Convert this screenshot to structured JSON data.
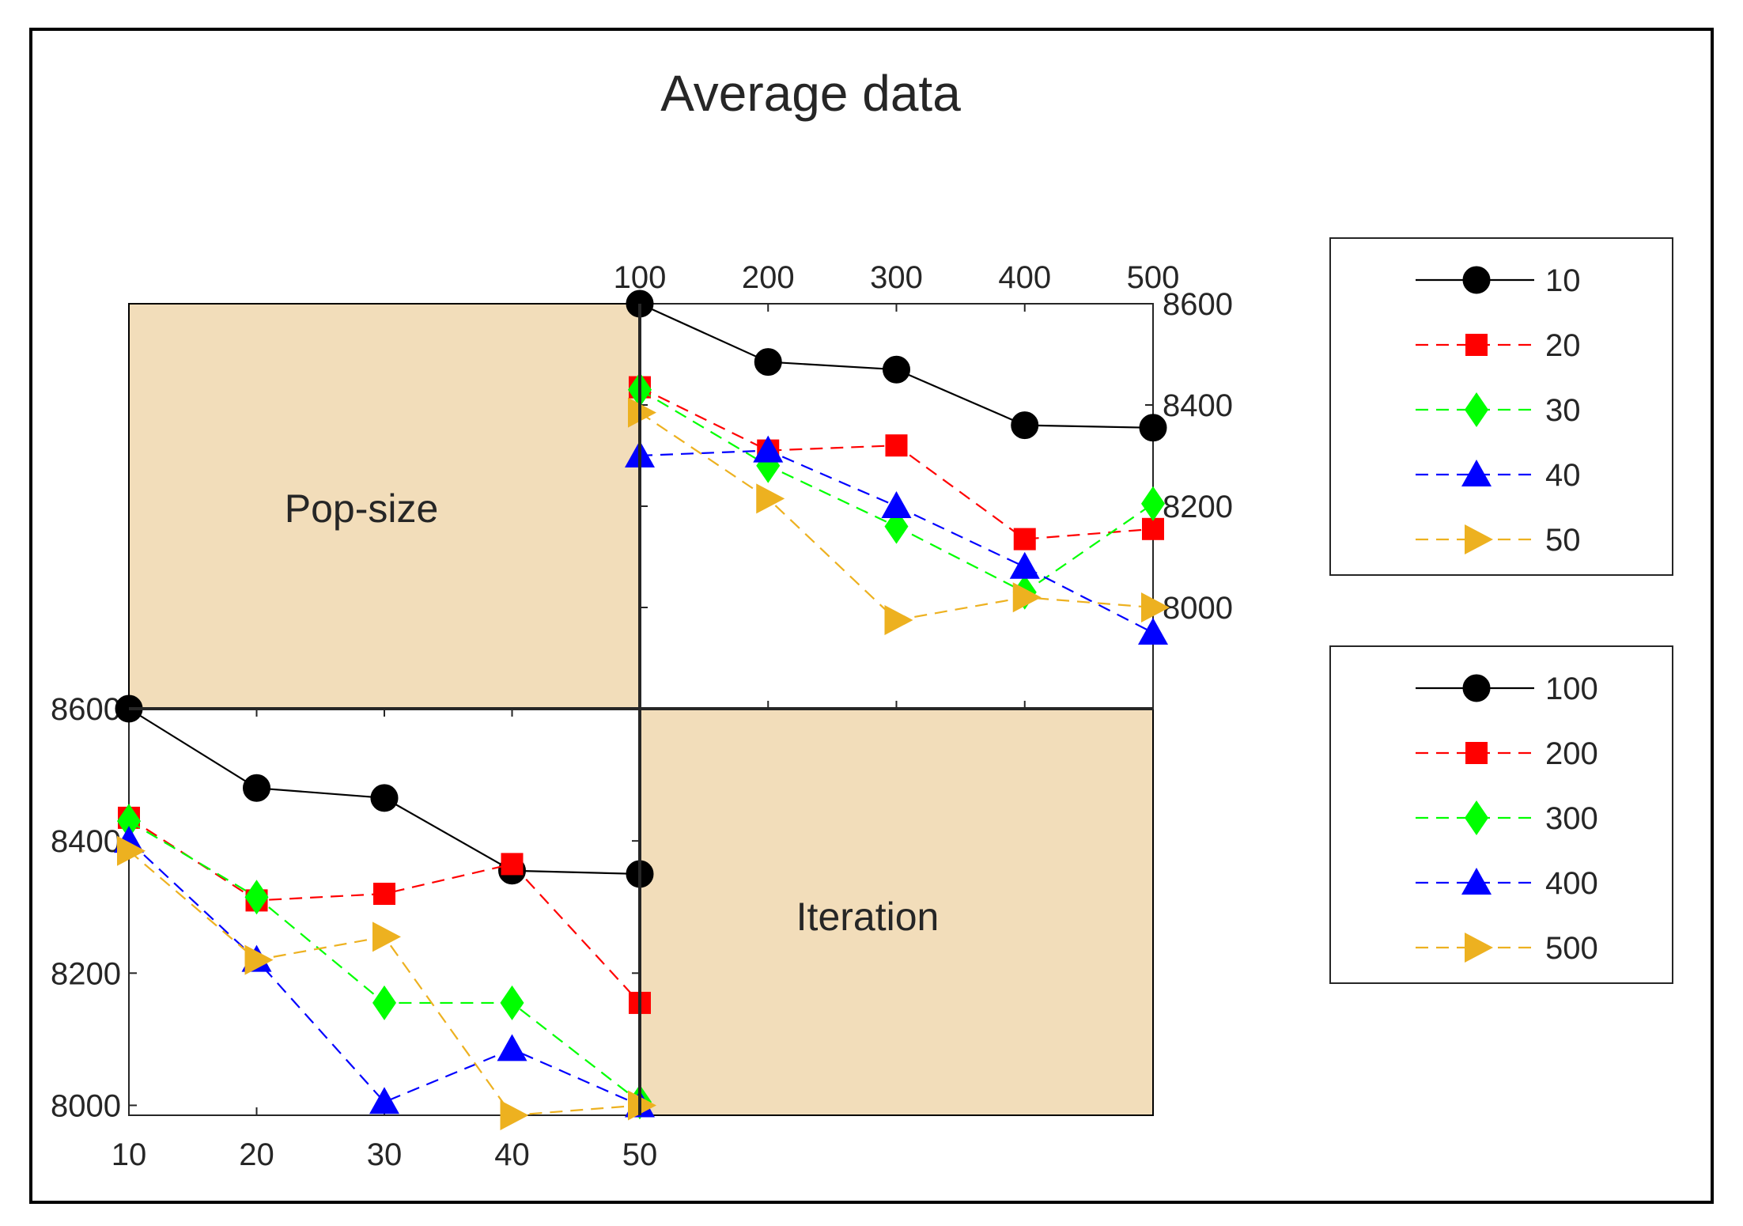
{
  "chart_data": {
    "type": "line",
    "title": "Average data",
    "panels": [
      {
        "id": "iteration-panel",
        "description_label": "Iteration",
        "x": [
          100,
          200,
          300,
          400,
          500
        ],
        "xticks": [
          "100",
          "200",
          "300",
          "400",
          "500"
        ],
        "xlim": [
          100,
          500
        ],
        "ylim": [
          7800,
          8600
        ],
        "yticks": [
          "8000",
          "8200",
          "8400",
          "8600"
        ],
        "ytick_values": [
          8000,
          8200,
          8400,
          8600
        ],
        "xaxis_position": "top",
        "yaxis_position": "right",
        "series": [
          {
            "name": "10",
            "color": "#000000",
            "marker": "circle",
            "dash": "solid",
            "values": [
              8600,
              8485,
              8470,
              8360,
              8355
            ]
          },
          {
            "name": "20",
            "color": "#ff0000",
            "marker": "square",
            "dash": "dashed",
            "values": [
              8435,
              8310,
              8320,
              8135,
              8155
            ]
          },
          {
            "name": "30",
            "color": "#00ff00",
            "marker": "diamond",
            "dash": "dashed",
            "values": [
              8430,
              8280,
              8160,
              8030,
              8205
            ]
          },
          {
            "name": "40",
            "color": "#0000ff",
            "marker": "triangle-up",
            "dash": "dashed",
            "values": [
              8300,
              8310,
              8200,
              8080,
              7950
            ]
          },
          {
            "name": "50",
            "color": "#edb120",
            "marker": "triangle-right",
            "dash": "dashed",
            "values": [
              8385,
              8215,
              7975,
              8020,
              8000
            ]
          }
        ]
      },
      {
        "id": "popsize-panel",
        "description_label": "Pop-size",
        "x": [
          10,
          20,
          30,
          40,
          50
        ],
        "xticks": [
          "10",
          "20",
          "30",
          "40",
          "50"
        ],
        "xlim": [
          10,
          50
        ],
        "ylim": [
          7985,
          8600
        ],
        "yticks": [
          "8000",
          "8200",
          "8400",
          "8600"
        ],
        "ytick_values": [
          8000,
          8200,
          8400,
          8600
        ],
        "xaxis_position": "bottom",
        "yaxis_position": "left",
        "series": [
          {
            "name": "100",
            "color": "#000000",
            "marker": "circle",
            "dash": "solid",
            "values": [
              8600,
              8480,
              8465,
              8355,
              8350
            ]
          },
          {
            "name": "200",
            "color": "#ff0000",
            "marker": "square",
            "dash": "dashed",
            "values": [
              8435,
              8310,
              8320,
              8365,
              8155
            ]
          },
          {
            "name": "300",
            "color": "#00ff00",
            "marker": "diamond",
            "dash": "dashed",
            "values": [
              8430,
              8315,
              8155,
              8155,
              8005
            ]
          },
          {
            "name": "400",
            "color": "#0000ff",
            "marker": "triangle-up",
            "dash": "dashed",
            "values": [
              8400,
              8220,
              8005,
              8085,
              8000
            ]
          },
          {
            "name": "500",
            "color": "#edb120",
            "marker": "triangle-right",
            "dash": "dashed",
            "values": [
              8385,
              8220,
              8255,
              7985,
              8000
            ]
          }
        ]
      }
    ],
    "legends": [
      {
        "id": "iteration-legend",
        "position": "right-top",
        "entries": [
          "10",
          "20",
          "30",
          "40",
          "50"
        ]
      },
      {
        "id": "popsize-legend",
        "position": "right-bottom",
        "entries": [
          "100",
          "200",
          "300",
          "400",
          "500"
        ]
      }
    ],
    "colors": {
      "shaded_block": "#f2ddba",
      "frame": "#000000"
    }
  }
}
